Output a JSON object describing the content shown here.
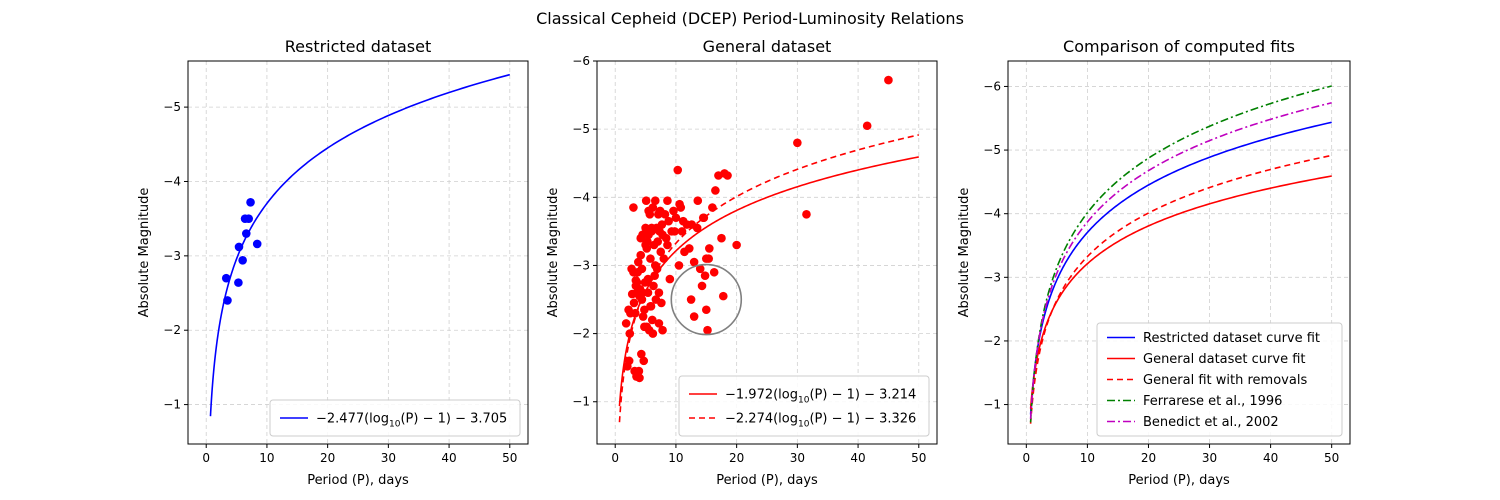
{
  "suptitle": "Classical Cepheid (DCEP) Period-Luminosity Relations",
  "colors": {
    "blue": "#0000ff",
    "red": "#ff0000",
    "green": "#008000",
    "magenta": "#bf00bf",
    "grid": "#d0d0d0",
    "circle": "#808080"
  },
  "chart_data": [
    {
      "type": "scatter",
      "title": "Restricted dataset",
      "xlabel": "Period (P), days",
      "ylabel": "Absolute Magnitude",
      "xlim": [
        -3,
        53
      ],
      "ylim": [
        -0.47,
        -5.62
      ],
      "y_inverted": true,
      "x_ticks": [
        0,
        10,
        20,
        30,
        40,
        50
      ],
      "y_ticks": [
        -1,
        -2,
        -3,
        -4,
        -5
      ],
      "x_tick_labels": [
        "0",
        "10",
        "20",
        "30",
        "40",
        "50"
      ],
      "y_tick_labels": [
        "−1",
        "−2",
        "−3",
        "−4",
        "−5"
      ],
      "grid": true,
      "legend_position": "lower right",
      "points": {
        "color": "#0000ff",
        "x": [
          3.3,
          3.5,
          5.3,
          5.4,
          6.0,
          6.4,
          6.6,
          7.0,
          7.3,
          8.4
        ],
        "y": [
          -2.7,
          -2.4,
          -2.64,
          -3.12,
          -2.94,
          -3.5,
          -3.3,
          -3.5,
          -3.72,
          -3.16
        ]
      },
      "series": [
        {
          "name": "−2.477(log₁₀(P) − 1) − 3.705",
          "style": "solid",
          "color": "#0000ff",
          "a": -2.477,
          "b": -3.705,
          "x_range": [
            0.7,
            50
          ]
        }
      ]
    },
    {
      "type": "scatter",
      "title": "General dataset",
      "xlabel": "Period (P), days",
      "ylabel": "Absolute Magnitude",
      "xlim": [
        -3,
        53
      ],
      "ylim": [
        -0.38,
        -6.0
      ],
      "y_inverted": true,
      "x_ticks": [
        0,
        10,
        20,
        30,
        40,
        50
      ],
      "y_ticks": [
        -1,
        -2,
        -3,
        -4,
        -5,
        -6
      ],
      "x_tick_labels": [
        "0",
        "10",
        "20",
        "30",
        "40",
        "50"
      ],
      "y_tick_labels": [
        "−1",
        "−2",
        "−3",
        "−4",
        "−5",
        "−6"
      ],
      "grid": true,
      "legend_position": "lower right",
      "points": {
        "color": "#ff0000",
        "x": [
          1.8,
          2.0,
          2.2,
          2.3,
          2.5,
          2.7,
          2.8,
          3.0,
          3.1,
          3.2,
          3.3,
          3.4,
          3.5,
          3.6,
          3.7,
          3.8,
          3.9,
          4.0,
          4.1,
          4.2,
          4.3,
          4.4,
          4.5,
          4.6,
          4.7,
          4.8,
          4.9,
          5.0,
          5.1,
          5.2,
          5.3,
          5.4,
          5.5,
          5.6,
          5.7,
          5.8,
          5.9,
          6.0,
          6.1,
          6.2,
          6.3,
          6.4,
          6.5,
          6.6,
          6.7,
          6.8,
          6.9,
          7.0,
          7.1,
          7.2,
          7.3,
          7.4,
          7.5,
          7.6,
          7.7,
          7.8,
          8.0,
          8.2,
          8.4,
          8.6,
          8.8,
          9.0,
          9.3,
          9.6,
          10.0,
          10.3,
          10.6,
          11.0,
          11.4,
          11.8,
          12.2,
          12.6,
          13.0,
          13.5,
          14.0,
          14.5,
          15.0,
          15.5,
          16.0,
          16.5,
          17.0,
          17.5,
          18.0,
          18.5,
          20.0,
          4.2,
          3.0,
          5.5,
          5.0,
          4.5,
          6.2,
          7.8,
          3.6,
          4.8,
          5.8,
          30.0,
          31.5,
          41.5,
          45.0,
          13.0,
          14.3,
          15.2,
          15.0,
          14.8,
          12.5,
          17.8,
          10.5,
          11.2,
          14.6,
          15.4,
          16.3,
          2.4,
          3.4,
          4.4,
          5.4,
          6.6,
          7.2,
          8.6,
          9.8,
          10.8,
          13.6,
          6.0,
          5.2,
          4.0
        ],
        "y": [
          -2.15,
          -1.52,
          -2.35,
          -1.6,
          -2.3,
          -2.95,
          -2.58,
          -3.85,
          -2.45,
          -1.45,
          -2.3,
          -2.78,
          -1.37,
          -2.6,
          -2.9,
          -3.05,
          -1.45,
          -2.55,
          -2.65,
          -3.15,
          -1.7,
          -2.95,
          -3.45,
          -2.25,
          -1.6,
          -2.35,
          -2.75,
          -3.55,
          -3.95,
          -2.1,
          -3.35,
          -2.6,
          -3.45,
          -2.05,
          -3.75,
          -3.1,
          -2.4,
          -3.5,
          -2.2,
          -3.85,
          -2.7,
          -3.3,
          -2.85,
          -3.95,
          -2.5,
          -3.55,
          -2.95,
          -3.35,
          -3.75,
          -2.6,
          -3.5,
          -3.8,
          -3.2,
          -2.45,
          -3.6,
          -3.45,
          -3.1,
          -3.75,
          -3.4,
          -3.95,
          -3.65,
          -2.8,
          -3.5,
          -3.8,
          -3.7,
          -4.4,
          -3.9,
          -3.5,
          -3.2,
          -3.6,
          -3.25,
          -3.6,
          -3.05,
          -3.55,
          -2.95,
          -3.7,
          -3.1,
          -3.25,
          -3.85,
          -4.1,
          -4.32,
          -3.4,
          -4.35,
          -4.32,
          -3.3,
          -3.4,
          -2.9,
          -3.8,
          -3.3,
          -2.6,
          -2.0,
          -2.05,
          -2.75,
          -2.1,
          -2.4,
          -4.8,
          -3.75,
          -5.05,
          -5.72,
          -2.25,
          -2.7,
          -2.05,
          -2.35,
          -2.85,
          -2.5,
          -2.55,
          -3.0,
          -3.65,
          -3.7,
          -3.1,
          -2.9,
          -2.0,
          -2.7,
          -2.5,
          -2.8,
          -3.0,
          -2.15,
          -3.3,
          -3.5,
          -3.85,
          -3.95,
          -3.55,
          -3.25,
          -1.35
        ]
      },
      "annotation_circle": {
        "cx": 15.0,
        "cy": -2.5,
        "color": "#808080"
      },
      "series": [
        {
          "name": "−1.972(log₁₀(P) − 1) − 3.214",
          "style": "solid",
          "color": "#ff0000",
          "a": -1.972,
          "b": -3.214,
          "x_range": [
            0.7,
            50
          ]
        },
        {
          "name": "−2.274(log₁₀(P) − 1) − 3.326",
          "style": "dashed",
          "color": "#ff0000",
          "a": -2.274,
          "b": -3.326,
          "x_range": [
            0.7,
            50
          ]
        }
      ]
    },
    {
      "type": "line",
      "title": "Comparison of computed fits",
      "xlabel": "Period (P), days",
      "ylabel": "Absolute Magnitude",
      "xlim": [
        -3,
        53
      ],
      "ylim": [
        -0.38,
        -6.4
      ],
      "y_inverted": true,
      "x_ticks": [
        0,
        10,
        20,
        30,
        40,
        50
      ],
      "y_ticks": [
        -1,
        -2,
        -3,
        -4,
        -5,
        -6
      ],
      "x_tick_labels": [
        "0",
        "10",
        "20",
        "30",
        "40",
        "50"
      ],
      "y_tick_labels": [
        "−1",
        "−2",
        "−3",
        "−4",
        "−5",
        "−6"
      ],
      "grid": true,
      "legend_position": "lower right",
      "series": [
        {
          "name": "Restricted dataset curve fit",
          "style": "solid",
          "color": "#0000ff",
          "a": -2.477,
          "b": -3.705,
          "x_range": [
            0.7,
            50
          ]
        },
        {
          "name": "General dataset curve fit",
          "style": "solid",
          "color": "#ff0000",
          "a": -1.972,
          "b": -3.214,
          "x_range": [
            0.7,
            50
          ]
        },
        {
          "name": "General fit with removals",
          "style": "dashed",
          "color": "#ff0000",
          "a": -2.274,
          "b": -3.326,
          "x_range": [
            0.7,
            50
          ]
        },
        {
          "name": "Ferrarese et al., 1996",
          "style": "dashdot",
          "color": "#008000",
          "a": -2.852,
          "b": -4.014,
          "x_range": [
            0.7,
            50
          ]
        },
        {
          "name": "Benedict et al., 2002",
          "style": "dashdot",
          "color": "#bf00bf",
          "a": -2.68,
          "b": -3.87,
          "x_range": [
            0.7,
            50
          ]
        }
      ]
    }
  ]
}
